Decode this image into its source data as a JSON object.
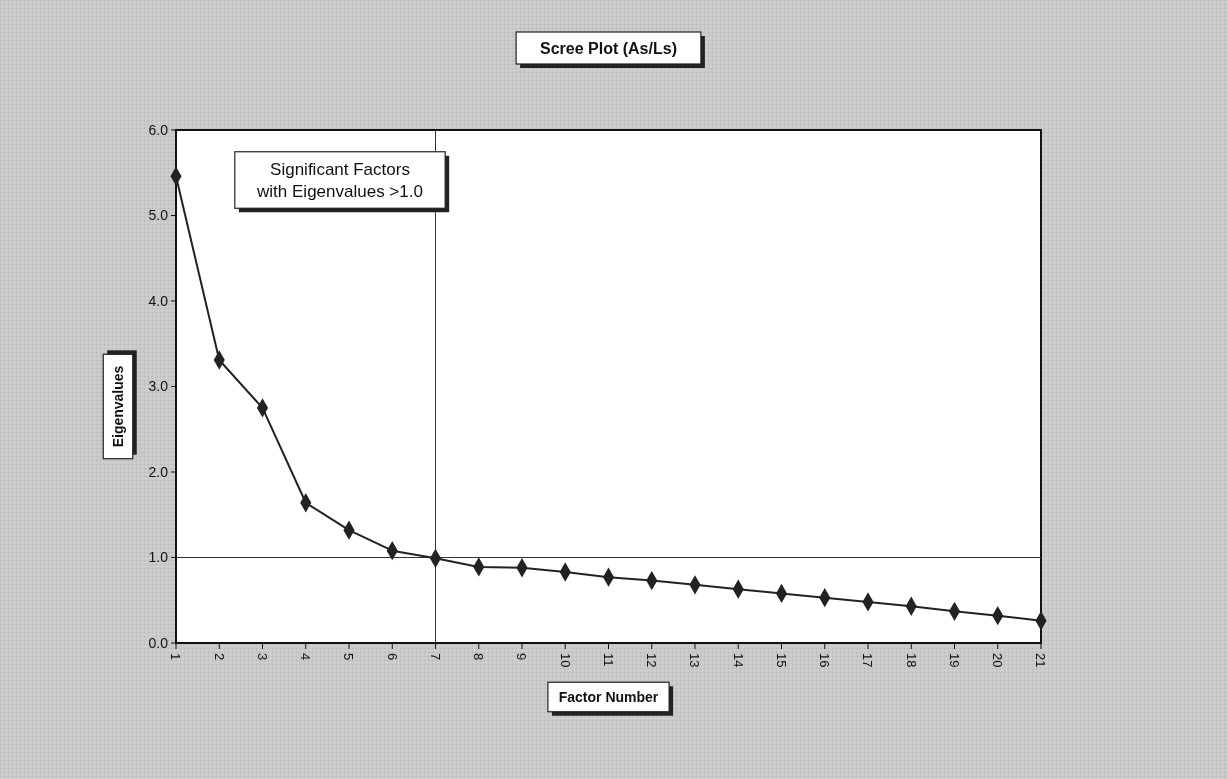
{
  "chart_data": {
    "type": "line",
    "title": "Scree Plot (As/Ls)",
    "xlabel": "Factor Number",
    "ylabel": "Eigenvalues",
    "x": [
      1,
      2,
      3,
      4,
      5,
      6,
      7,
      8,
      9,
      10,
      11,
      12,
      13,
      14,
      15,
      16,
      17,
      18,
      19,
      20,
      21
    ],
    "series": [
      {
        "color": "#222222",
        "values": [
          5.46,
          3.31,
          2.75,
          1.64,
          1.32,
          1.08,
          0.99,
          0.89,
          0.88,
          0.83,
          0.77,
          0.73,
          0.68,
          0.63,
          0.58,
          0.53,
          0.48,
          0.43,
          0.37,
          0.32,
          0.26
        ]
      }
    ],
    "xlim": [
      1,
      21
    ],
    "xticks": [
      1,
      2,
      3,
      4,
      5,
      6,
      7,
      8,
      9,
      10,
      11,
      12,
      13,
      14,
      15,
      16,
      17,
      18,
      19,
      20,
      21
    ],
    "ylim": [
      0,
      6
    ],
    "yticks": [
      {
        "value": 0,
        "label": "0.0"
      },
      {
        "value": 1,
        "label": "1.0"
      },
      {
        "value": 2,
        "label": "2.0"
      },
      {
        "value": 3,
        "label": "3.0"
      },
      {
        "value": 4,
        "label": "4.0"
      },
      {
        "value": 5,
        "label": "5.0"
      },
      {
        "value": 6,
        "label": "6.0"
      }
    ],
    "ref_lines": [
      {
        "axis": "y",
        "value": 1,
        "color": "#333333"
      },
      {
        "axis": "x",
        "value": 7,
        "color": "#333333"
      }
    ],
    "annotations": [
      "Significant Factors\nwith Eigenvalues >1.0"
    ],
    "marker": "diamond",
    "line_style": "solid",
    "grid": false
  }
}
